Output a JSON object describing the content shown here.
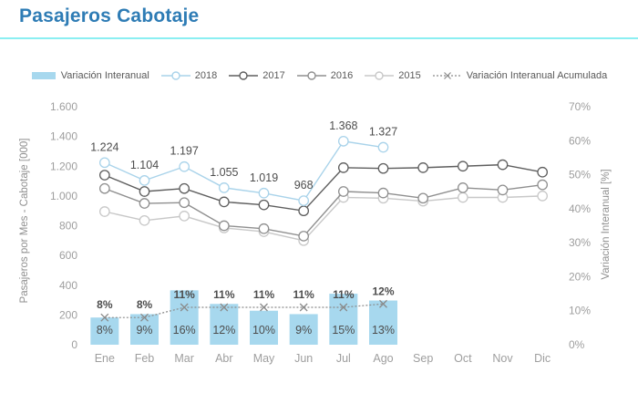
{
  "header": {
    "title": "Pasajeros Cabotaje"
  },
  "colors": {
    "title": "#2E7CB5",
    "underline": "#8BEFF2",
    "bars": "#A7D8EE",
    "line_2018": "#A9D3EA",
    "line_2017": "#5E5E5E",
    "line_2016": "#8F8F8F",
    "line_2015": "#C8C8C8",
    "accumulated": "#8A8A8A",
    "tick_text": "#9E9E9E",
    "axis_title_text": "#8F8F8F",
    "data_label_text": "#4D4D4D",
    "legend_text": "#595959"
  },
  "legend": {
    "items": [
      {
        "label": "Variación Interanual",
        "swatch": "bar"
      },
      {
        "label": "2018",
        "swatch": "line-circle"
      },
      {
        "label": "2017",
        "swatch": "line-circle"
      },
      {
        "label": "2016",
        "swatch": "line-circle"
      },
      {
        "label": "2015",
        "swatch": "line-circle"
      },
      {
        "label": "Variación Interanual Acumulada",
        "swatch": "dashed-x"
      }
    ]
  },
  "chart_data": {
    "type": "bar+line combo",
    "categories": [
      "Ene",
      "Feb",
      "Mar",
      "Abr",
      "May",
      "Jun",
      "Jul",
      "Ago",
      "Sep",
      "Oct",
      "Nov",
      "Dic"
    ],
    "left_axis": {
      "label": "Pasajeros por Mes - Cabotaje [000]",
      "min": 0,
      "max": 1600,
      "tick_step": 200,
      "tick_labels": [
        "0",
        "200",
        "400",
        "600",
        "800",
        "1.000",
        "1.200",
        "1.400",
        "1.600"
      ]
    },
    "right_axis": {
      "label": "Variación Interanual [%]",
      "min": 0,
      "max": 70,
      "tick_step": 10,
      "tick_labels": [
        "0%",
        "10%",
        "20%",
        "30%",
        "40%",
        "50%",
        "60%",
        "70%"
      ]
    },
    "grid": "off",
    "legend_position": "top",
    "bar_series": {
      "name": "Variación Interanual",
      "axis": "right",
      "values_pct": [
        8,
        9,
        16,
        12,
        10,
        9,
        15,
        13
      ],
      "labels": [
        "8%",
        "9%",
        "16%",
        "12%",
        "10%",
        "9%",
        "15%",
        "13%"
      ]
    },
    "accumulated_series": {
      "name": "Variación Interanual Acumulada",
      "axis": "right",
      "style": "dashed-x-markers",
      "values_pct": [
        8,
        8,
        11,
        11,
        11,
        11,
        11,
        12
      ],
      "labels": [
        "8%",
        "8%",
        "11%",
        "11%",
        "11%",
        "11%",
        "11%",
        "12%"
      ]
    },
    "line_series": [
      {
        "name": "2018",
        "axis": "left",
        "show_labels": true,
        "values": [
          1224,
          1104,
          1197,
          1055,
          1019,
          968,
          1368,
          1327
        ],
        "labels": [
          "1.224",
          "1.104",
          "1.197",
          "1.055",
          "1.019",
          "968",
          "1.368",
          "1.327"
        ]
      },
      {
        "name": "2017",
        "axis": "left",
        "values": [
          1140,
          1030,
          1050,
          960,
          940,
          900,
          1190,
          1185,
          1190,
          1200,
          1210,
          1160
        ]
      },
      {
        "name": "2016",
        "axis": "left",
        "values": [
          1050,
          950,
          955,
          800,
          780,
          730,
          1030,
          1020,
          985,
          1055,
          1040,
          1075
        ]
      },
      {
        "name": "2015",
        "axis": "left",
        "values": [
          895,
          835,
          865,
          785,
          760,
          700,
          990,
          985,
          965,
          990,
          990,
          1000
        ]
      }
    ]
  }
}
